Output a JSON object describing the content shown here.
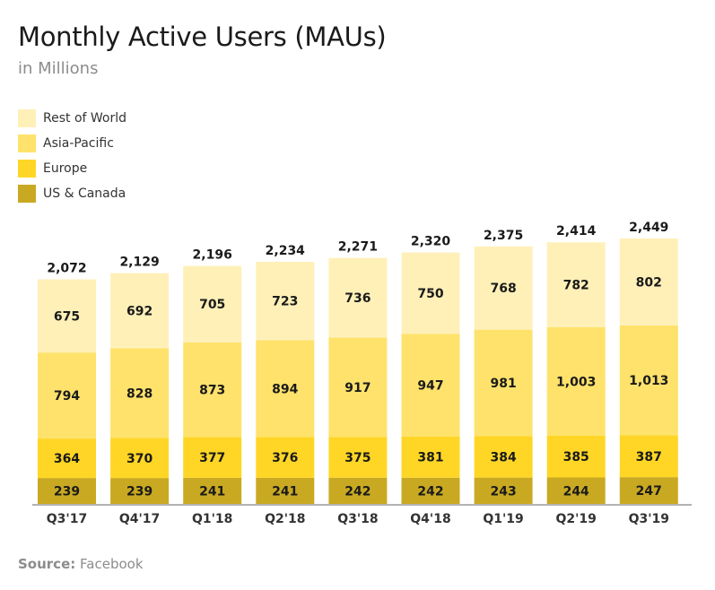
{
  "title": "Monthly Active Users (MAUs)",
  "subtitle": "in Millions",
  "source": {
    "label": "Source:",
    "value": "Facebook"
  },
  "chart_data": {
    "type": "bar",
    "stacked": true,
    "title": "Monthly Active Users (MAUs)",
    "subtitle": "in Millions",
    "xlabel": "",
    "ylabel": "",
    "ylim": [
      0,
      2449
    ],
    "grid": false,
    "legend_position": "top-left",
    "categories": [
      "Q3'17",
      "Q4'17",
      "Q1'18",
      "Q2'18",
      "Q3'18",
      "Q4'18",
      "Q1'19",
      "Q2'19",
      "Q3'19"
    ],
    "series": [
      {
        "name": "US & Canada",
        "color": "#c9a922",
        "values": [
          239,
          239,
          241,
          241,
          242,
          242,
          243,
          244,
          247
        ],
        "labels": [
          "239",
          "239",
          "241",
          "241",
          "242",
          "242",
          "243",
          "244",
          "247"
        ]
      },
      {
        "name": "Europe",
        "color": "#ffd626",
        "values": [
          364,
          370,
          377,
          376,
          375,
          381,
          384,
          385,
          387
        ],
        "labels": [
          "364",
          "370",
          "377",
          "376",
          "375",
          "381",
          "384",
          "385",
          "387"
        ]
      },
      {
        "name": "Asia-Pacific",
        "color": "#ffe26b",
        "values": [
          794,
          828,
          873,
          894,
          917,
          947,
          981,
          1003,
          1013
        ],
        "labels": [
          "794",
          "828",
          "873",
          "894",
          "917",
          "947",
          "981",
          "1,003",
          "1,013"
        ]
      },
      {
        "name": "Rest of World",
        "color": "#fff0b8",
        "values": [
          675,
          692,
          705,
          723,
          736,
          750,
          768,
          782,
          802
        ],
        "labels": [
          "675",
          "692",
          "705",
          "723",
          "736",
          "750",
          "768",
          "782",
          "802"
        ]
      }
    ],
    "totals": [
      2072,
      2129,
      2196,
      2234,
      2271,
      2320,
      2375,
      2414,
      2449
    ],
    "total_labels": [
      "2,072",
      "2,129",
      "2,196",
      "2,234",
      "2,271",
      "2,320",
      "2,375",
      "2,414",
      "2,449"
    ]
  },
  "legend": [
    {
      "label": "Rest of World",
      "color": "#fff0b8"
    },
    {
      "label": "Asia-Pacific",
      "color": "#ffe26b"
    },
    {
      "label": "Europe",
      "color": "#ffd626"
    },
    {
      "label": "US & Canada",
      "color": "#c9a922"
    }
  ],
  "axis_color": "#b3b3b3"
}
